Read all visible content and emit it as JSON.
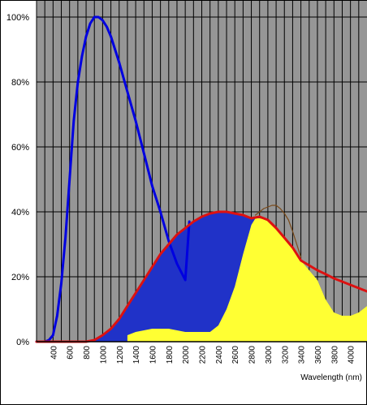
{
  "chart_data": {
    "type": "area",
    "title": "",
    "xlabel": "Wavelength (nm)",
    "ylabel": "",
    "xlim": [
      200,
      4200
    ],
    "ylim": [
      0,
      100
    ],
    "grid": true,
    "plot_background": "#969696",
    "x_tick_labels": [
      "400",
      "600",
      "800",
      "1000",
      "1200",
      "1400",
      "1600",
      "1800",
      "2000",
      "2200",
      "2400",
      "2600",
      "2800",
      "3000",
      "3200",
      "3400",
      "3600",
      "3800",
      "4000"
    ],
    "y_tick_labels": [
      "0%",
      "20%",
      "40%",
      "60%",
      "80%",
      "100%"
    ],
    "series": [
      {
        "kind": "line",
        "color": "#0000e0",
        "x": [
          200,
          300,
          350,
          400,
          450,
          500,
          550,
          600,
          650,
          700,
          750,
          800,
          850,
          900,
          950,
          1000,
          1050,
          1100,
          1200,
          1300,
          1400,
          1500,
          1600,
          1700,
          1800,
          1900,
          2000,
          2050
        ],
        "y": [
          0,
          0,
          0.5,
          2,
          8,
          18,
          32,
          50,
          68,
          80,
          88,
          94,
          98,
          100,
          100,
          99,
          97,
          94,
          86,
          77,
          68,
          58,
          48,
          40,
          31,
          24,
          19,
          37
        ]
      },
      {
        "kind": "area",
        "color": "#2032c8",
        "x": [
          500,
          600,
          700,
          800,
          900,
          1000,
          1100,
          1200,
          1300,
          1400,
          1500,
          1600,
          1700,
          1800,
          1900,
          2000,
          2100,
          2200,
          2300,
          2400,
          2500,
          2600,
          2700,
          2800,
          2900,
          3000,
          3100,
          3200,
          3300,
          3400,
          3500,
          3600,
          3700,
          3800,
          3900,
          4000,
          4100,
          4200
        ],
        "y": [
          0,
          0,
          0,
          0,
          0.5,
          2,
          4,
          7,
          11,
          15,
          19,
          23,
          27,
          30,
          33,
          35,
          37,
          38.5,
          39.5,
          40,
          40,
          39.5,
          39,
          38,
          38.5,
          37.5,
          35,
          32,
          29,
          25,
          22,
          19,
          13,
          9,
          8,
          8,
          9,
          11
        ]
      },
      {
        "kind": "area",
        "color": "#ffff33",
        "x": [
          1300,
          1400,
          1500,
          1600,
          1700,
          1800,
          1900,
          2000,
          2100,
          2200,
          2300,
          2400,
          2500,
          2600,
          2700,
          2800,
          2850,
          2900,
          3000,
          3100,
          3200,
          3300,
          3400,
          3500,
          3600,
          3700,
          3800,
          3900,
          4000,
          4100,
          4200
        ],
        "y": [
          2,
          3,
          3.5,
          4,
          4,
          4,
          3.5,
          3,
          3,
          3,
          3,
          5,
          10,
          17,
          27,
          36,
          38,
          38,
          37.5,
          35,
          32,
          29,
          25,
          22,
          19,
          13,
          9,
          8,
          8,
          9,
          11
        ]
      },
      {
        "kind": "line",
        "color": "#dd1111",
        "x": [
          200,
          500,
          600,
          700,
          800,
          900,
          1000,
          1100,
          1200,
          1300,
          1400,
          1500,
          1600,
          1700,
          1800,
          1900,
          2000,
          2100,
          2200,
          2300,
          2400,
          2500,
          2600,
          2700,
          2800,
          2900,
          3000,
          3100,
          3200,
          3300,
          3400,
          3500,
          3600,
          3700,
          3800,
          3900,
          4000,
          4100,
          4200
        ],
        "y": [
          0,
          0,
          0,
          0,
          0,
          0.5,
          2,
          4,
          7,
          11,
          15,
          19,
          23,
          27,
          30,
          33,
          35,
          37,
          38.5,
          39.5,
          40,
          40,
          39.5,
          39,
          38,
          38.5,
          37.5,
          35,
          32,
          29,
          25,
          23.5,
          22,
          20.8,
          19.5,
          18.5,
          17.5,
          16.5,
          15.5
        ]
      },
      {
        "kind": "line",
        "color": "#7a4a1a",
        "x": [
          2850,
          2900,
          2950,
          3000,
          3050,
          3100,
          3150,
          3200,
          3250,
          3300,
          3350,
          3400
        ],
        "y": [
          39,
          40,
          41,
          41.5,
          42,
          42,
          41,
          39.5,
          37.5,
          34,
          30,
          26
        ]
      }
    ]
  }
}
